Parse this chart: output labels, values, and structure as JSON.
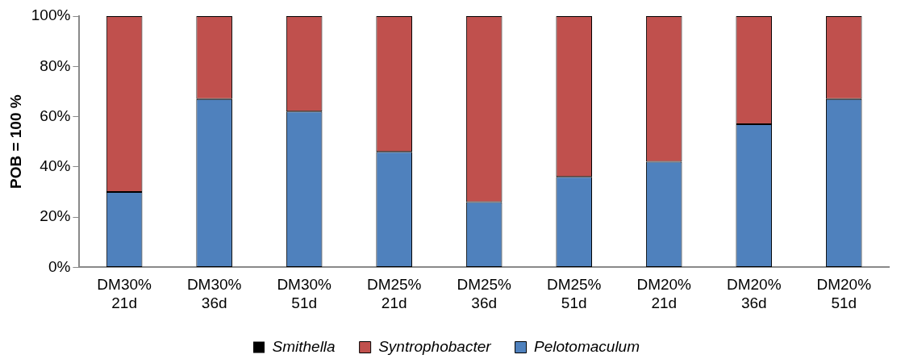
{
  "chart_data": {
    "type": "bar",
    "stacked": true,
    "ylabel": "POB = 100 %",
    "categories": [
      "DM30% 21d",
      "DM30% 36d",
      "DM30% 51d",
      "DM25% 21d",
      "DM25% 36d",
      "DM25% 51d",
      "DM20% 21d",
      "DM20% 36d",
      "DM20% 51d"
    ],
    "series": [
      {
        "name": "Pelotomaculum",
        "color": "#4f81bd",
        "values": [
          30,
          67,
          62,
          46,
          26,
          36,
          42,
          57,
          67
        ]
      },
      {
        "name": "Syntrophobacter",
        "color": "#c0504d",
        "values": [
          70,
          33,
          38,
          54,
          74,
          64,
          58,
          43,
          33
        ]
      },
      {
        "name": "Smithella",
        "color": "#000000",
        "values": [
          0,
          0,
          0,
          0,
          0,
          0,
          0,
          0,
          0
        ]
      }
    ],
    "ylim": [
      0,
      100
    ],
    "yticks": [
      {
        "value": 0,
        "label": "0%"
      },
      {
        "value": 20,
        "label": "20%"
      },
      {
        "value": 40,
        "label": "40%"
      },
      {
        "value": 60,
        "label": "60%"
      },
      {
        "value": 80,
        "label": "80%"
      },
      {
        "value": 100,
        "label": "100%"
      }
    ],
    "grid": false,
    "legend": "bottom"
  }
}
